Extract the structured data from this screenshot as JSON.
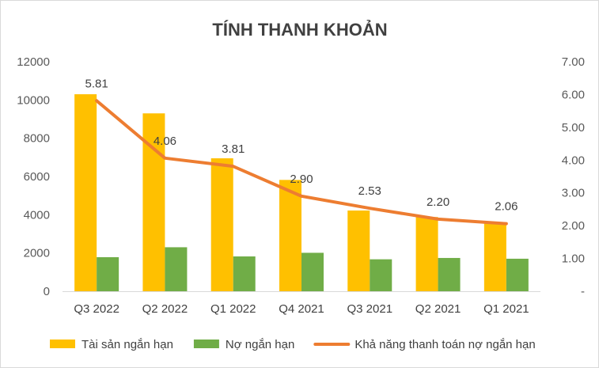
{
  "chart_data": {
    "type": "bar",
    "title": "TÍNH THANH KHOẢN",
    "categories": [
      "Q3 2022",
      "Q2 2022",
      "Q1 2022",
      "Q4 2021",
      "Q3 2021",
      "Q2 2021",
      "Q1 2021"
    ],
    "series": [
      {
        "name": "Tài sản ngắn hạn",
        "type": "bar",
        "axis": "left",
        "color": "#FFC000",
        "values": [
          10300,
          9300,
          6950,
          5820,
          4220,
          3880,
          3550
        ]
      },
      {
        "name": "Nợ ngắn hạn",
        "type": "bar",
        "axis": "left",
        "color": "#70AD47",
        "values": [
          1780,
          2300,
          1820,
          2010,
          1670,
          1740,
          1700
        ]
      },
      {
        "name": "Khả năng thanh toán nợ ngắn hạn",
        "type": "line",
        "axis": "right",
        "color": "#ED7D31",
        "values": [
          5.81,
          4.06,
          3.81,
          2.9,
          2.53,
          2.2,
          2.06
        ],
        "data_labels": [
          "5.81",
          "4.06",
          "3.81",
          "2.90",
          "2.53",
          "2.20",
          "2.06"
        ]
      }
    ],
    "y_left": {
      "ylim": [
        0,
        12000
      ],
      "ticks": [
        0,
        2000,
        4000,
        6000,
        8000,
        10000,
        12000
      ],
      "tick_labels": [
        "0",
        "2000",
        "4000",
        "6000",
        "8000",
        "10000",
        "12000"
      ]
    },
    "y_right": {
      "ylim": [
        0,
        7
      ],
      "ticks": [
        0,
        1,
        2,
        3,
        4,
        5,
        6,
        7
      ],
      "tick_labels": [
        "-",
        "1.00",
        "2.00",
        "3.00",
        "4.00",
        "5.00",
        "6.00",
        "7.00"
      ]
    },
    "grid": false,
    "legend_position": "bottom"
  }
}
